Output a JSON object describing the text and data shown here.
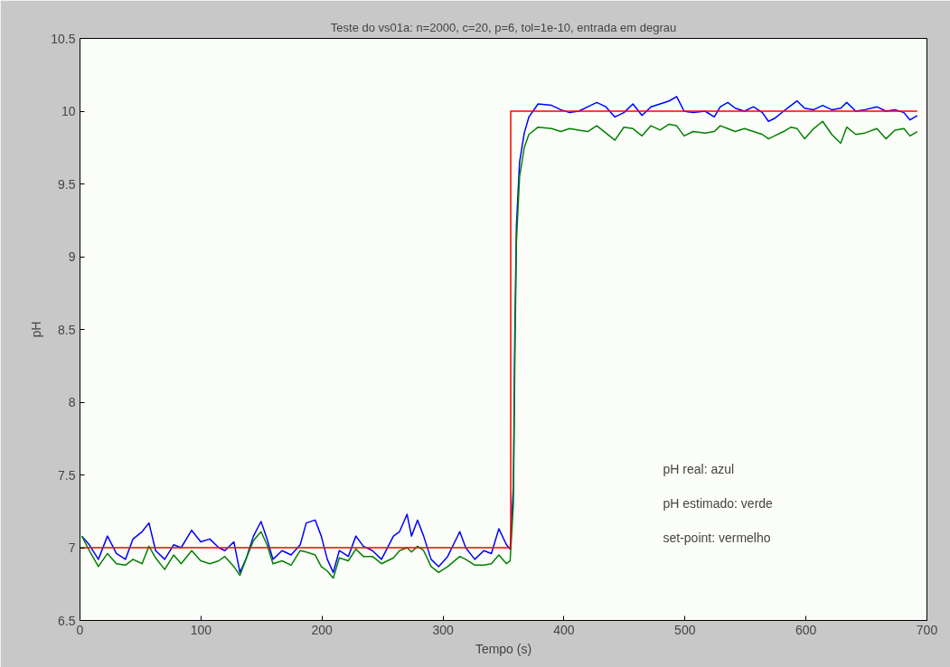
{
  "chart_data": {
    "type": "line",
    "title": "Teste do vs01a: n=2000, c=20, p=6, tol=1e-10, entrada em degrau",
    "xlabel": "Tempo (s)",
    "ylabel": "pH",
    "xlim": [
      0,
      700
    ],
    "xticks": [
      0,
      100,
      200,
      300,
      400,
      500,
      600,
      700
    ],
    "ylim": [
      6.5,
      10.5
    ],
    "yticks": [
      6.5,
      7,
      7.5,
      8,
      8.5,
      9,
      9.5,
      10,
      10.5
    ],
    "grid": false,
    "x": [
      1.5,
      7.7,
      15.2,
      22.7,
      30.1,
      37.6,
      43.8,
      51.3,
      57.0,
      62.5,
      70.0,
      77.4,
      83.6,
      92.3,
      99.8,
      107.3,
      114.7,
      119.7,
      127.2,
      132.2,
      137.1,
      143.4,
      149.6,
      154.6,
      159.5,
      167.0,
      174.5,
      182.0,
      187.0,
      194.4,
      199.4,
      204.4,
      209.3,
      214.3,
      221.8,
      228.0,
      234.2,
      241.7,
      249.2,
      259.1,
      264.1,
      270.3,
      274.0,
      279.0,
      284.0,
      290.2,
      296.4,
      303.9,
      313.9,
      318.8,
      326.3,
      333.8,
      340.0,
      346.2,
      352.5,
      355.5,
      358.2,
      359.4,
      360.7,
      363.3,
      367.2,
      371.0,
      378.6,
      389.8,
      397.3,
      404.7,
      412.2,
      419.7,
      427.1,
      434.6,
      442.1,
      449.5,
      457.0,
      464.5,
      471.9,
      479.4,
      486.9,
      493.1,
      499.3,
      506.8,
      516.7,
      524.2,
      529.2,
      535.4,
      541.6,
      549.1,
      556.6,
      564.0,
      569.0,
      574.0,
      581.5,
      587.7,
      592.7,
      598.9,
      606.4,
      613.8,
      621.3,
      628.7,
      633.7,
      641.2,
      648.7,
      658.6,
      666.1,
      673.6,
      681.0,
      686.0,
      692.0
    ],
    "series": [
      {
        "color": "#0000ff",
        "values": [
          7.08,
          7.02,
          6.92,
          7.08,
          6.96,
          6.92,
          7.06,
          7.11,
          7.17,
          6.98,
          6.92,
          7.02,
          7.0,
          7.12,
          7.04,
          7.06,
          7.0,
          6.98,
          7.04,
          6.83,
          6.92,
          7.08,
          7.18,
          7.06,
          6.92,
          6.98,
          6.95,
          7.02,
          7.17,
          7.19,
          7.08,
          6.92,
          6.83,
          6.98,
          6.94,
          7.08,
          7.01,
          6.98,
          6.92,
          7.08,
          7.11,
          7.23,
          7.08,
          7.19,
          7.08,
          6.92,
          6.87,
          6.94,
          7.11,
          7.0,
          6.92,
          6.98,
          6.96,
          7.13,
          7.02,
          6.99,
          7.42,
          8.47,
          9.21,
          9.65,
          9.85,
          9.96,
          10.05,
          10.04,
          10.01,
          9.99,
          10.0,
          10.03,
          10.06,
          10.03,
          9.96,
          9.99,
          10.05,
          9.97,
          10.03,
          10.05,
          10.07,
          10.1,
          10.0,
          9.99,
          10.0,
          9.96,
          10.03,
          10.06,
          10.02,
          10.0,
          10.03,
          9.99,
          9.93,
          9.95,
          10.0,
          10.04,
          10.07,
          10.02,
          10.01,
          10.04,
          10.01,
          10.02,
          10.06,
          10.0,
          10.01,
          10.03,
          10.0,
          10.01,
          9.99,
          9.94,
          9.97
        ]
      },
      {
        "color": "#008000",
        "values": [
          7.08,
          6.98,
          6.87,
          6.96,
          6.89,
          6.88,
          6.92,
          6.89,
          7.01,
          6.93,
          6.85,
          6.95,
          6.89,
          6.98,
          6.91,
          6.89,
          6.91,
          6.94,
          6.87,
          6.81,
          6.92,
          7.05,
          7.11,
          7.02,
          6.89,
          6.91,
          6.88,
          6.98,
          6.97,
          6.95,
          6.87,
          6.84,
          6.79,
          6.93,
          6.91,
          6.99,
          6.94,
          6.94,
          6.89,
          6.93,
          6.98,
          7.0,
          6.97,
          7.01,
          6.98,
          6.87,
          6.83,
          6.87,
          6.94,
          6.92,
          6.88,
          6.88,
          6.89,
          6.95,
          6.89,
          6.91,
          7.3,
          8.3,
          9.1,
          9.55,
          9.75,
          9.84,
          9.89,
          9.88,
          9.86,
          9.88,
          9.87,
          9.86,
          9.9,
          9.85,
          9.8,
          9.89,
          9.88,
          9.83,
          9.9,
          9.87,
          9.91,
          9.9,
          9.83,
          9.86,
          9.85,
          9.86,
          9.9,
          9.88,
          9.86,
          9.88,
          9.86,
          9.84,
          9.81,
          9.83,
          9.86,
          9.89,
          9.88,
          9.81,
          9.88,
          9.93,
          9.84,
          9.78,
          9.89,
          9.84,
          9.85,
          9.88,
          9.81,
          9.87,
          9.88,
          9.83,
          9.86
        ]
      },
      {
        "color": "#ff0000",
        "x": [
          0,
          356,
          356,
          692
        ],
        "values": [
          7,
          7,
          10,
          10
        ]
      }
    ],
    "annotations": [
      "pH real: azul",
      "pH estimado: verde",
      "set-point: vermelho"
    ]
  }
}
